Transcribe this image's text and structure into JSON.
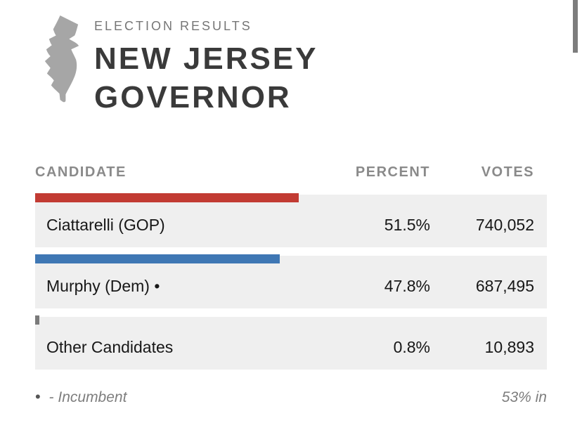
{
  "chart_data": {
    "type": "bar",
    "title": "NEW JERSEY GOVERNOR",
    "subtitle": "ELECTION RESULTS",
    "categories": [
      "Ciattarelli (GOP)",
      "Murphy (Dem)",
      "Other Candidates"
    ],
    "series": [
      {
        "name": "Percent",
        "values": [
          51.5,
          47.8,
          0.8
        ]
      },
      {
        "name": "Votes",
        "values": [
          740052,
          687495,
          10893
        ]
      }
    ],
    "xlim": [
      0,
      100
    ],
    "bar_colors": [
      "#c23b33",
      "#3f77b4",
      "#7b7b7b"
    ],
    "annotations": [
      "• - Incumbent",
      "53% in"
    ],
    "legend_position": "none",
    "grid": false
  },
  "header": {
    "kicker": "ELECTION RESULTS",
    "title_line1": "NEW JERSEY",
    "title_line2": "GOVERNOR",
    "state_icon": "new-jersey-silhouette"
  },
  "table": {
    "col_candidate": "CANDIDATE",
    "col_percent": "PERCENT",
    "col_votes": "VOTES",
    "rows": [
      {
        "name": "Ciattarelli (GOP)",
        "percent": "51.5%",
        "percent_value": 51.5,
        "votes": "740,052",
        "bar_color": "#c23b33"
      },
      {
        "name": "Murphy (Dem) •",
        "percent": "47.8%",
        "percent_value": 47.8,
        "votes": "687,495",
        "bar_color": "#3f77b4"
      },
      {
        "name": "Other Candidates",
        "percent": "0.8%",
        "percent_value": 0.8,
        "votes": "10,893",
        "bar_color": "#7b7b7b"
      }
    ]
  },
  "footer": {
    "bullet": "•",
    "incumbent_label": "- Incumbent",
    "reporting": "53% in"
  },
  "colors": {
    "gop_red": "#c23b33",
    "dem_blue": "#3f77b4",
    "other_gray": "#7b7b7b",
    "row_bg": "#efefef",
    "icon_gray": "#a6a6a6"
  }
}
